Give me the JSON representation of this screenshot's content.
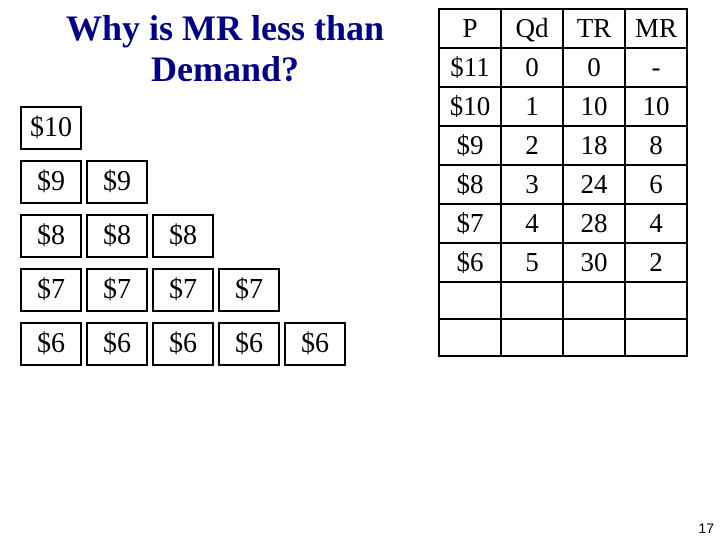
{
  "title": "Why is MR less than Demand?",
  "priceBlocks": {
    "rows": [
      {
        "label": "$10",
        "count": 1
      },
      {
        "label": "$9",
        "count": 2
      },
      {
        "label": "$8",
        "count": 3
      },
      {
        "label": "$7",
        "count": 4
      },
      {
        "label": "$6",
        "count": 5
      }
    ],
    "cell": {
      "width": 62,
      "height": 44,
      "fontsize": 28,
      "border": "#000000"
    }
  },
  "table": {
    "columns": [
      "P",
      "Qd",
      "TR",
      "MR"
    ],
    "rows": [
      [
        "$11",
        "0",
        "0",
        "-"
      ],
      [
        "$10",
        "1",
        "10",
        "10"
      ],
      [
        "$9",
        "2",
        "18",
        "8"
      ],
      [
        "$8",
        "3",
        "24",
        "6"
      ],
      [
        "$7",
        "4",
        "28",
        "4"
      ],
      [
        "$6",
        "5",
        "30",
        "2"
      ],
      [
        "",
        "",
        "",
        ""
      ],
      [
        "",
        "",
        "",
        ""
      ]
    ],
    "cell": {
      "width": 62,
      "height": 37,
      "fontsize": 27,
      "border": "#000000"
    }
  },
  "pageNumber": "17",
  "colors": {
    "title": "#000080",
    "text": "#000000",
    "background": "#ffffff",
    "border": "#000000"
  }
}
